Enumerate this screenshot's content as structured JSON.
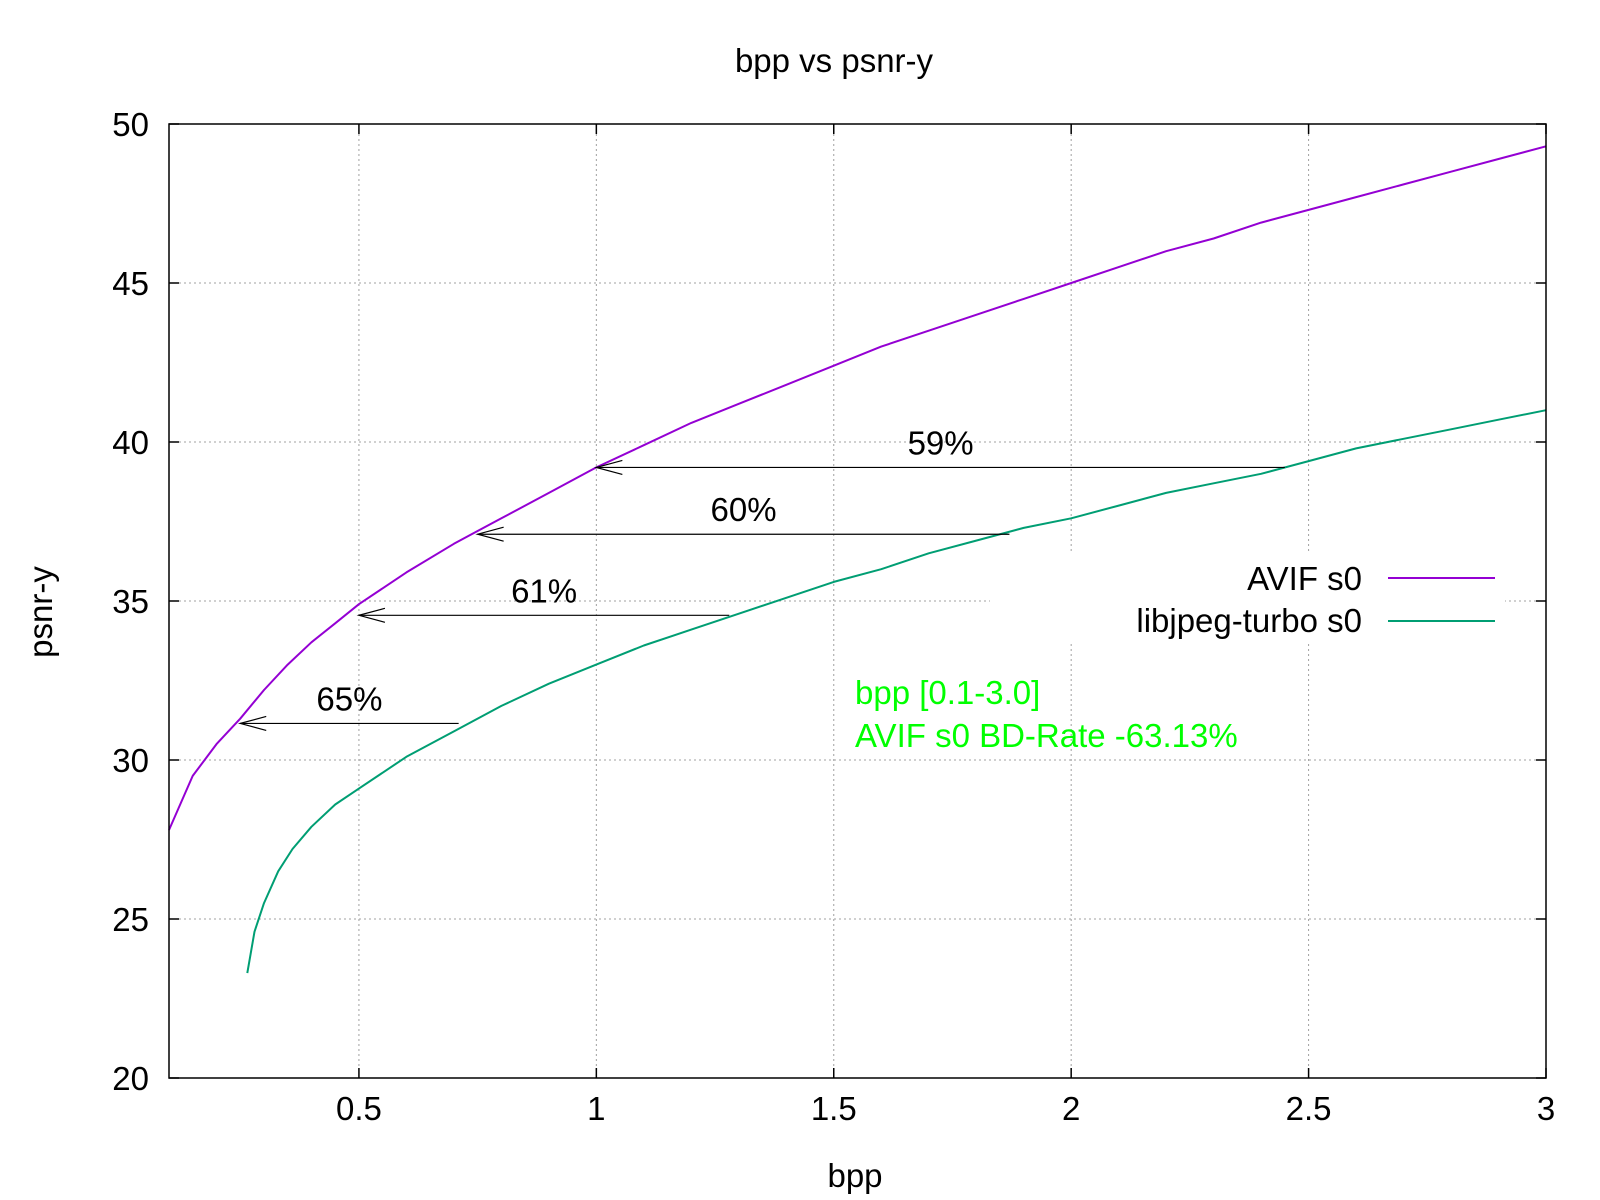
{
  "chart_data": {
    "type": "line",
    "title": "bpp vs psnr-y",
    "xlabel": "bpp",
    "ylabel": "psnr-y",
    "xlim": [
      0.1,
      3.0
    ],
    "ylim": [
      20,
      50
    ],
    "grid": true,
    "x_ticks": [
      0.5,
      1,
      1.5,
      2,
      2.5,
      3
    ],
    "x_tick_labels": [
      "0.5",
      "1",
      "1.5",
      "2",
      "2.5",
      "3"
    ],
    "y_ticks": [
      20,
      25,
      30,
      35,
      40,
      45,
      50
    ],
    "y_tick_labels": [
      "20",
      "25",
      "30",
      "35",
      "40",
      "45",
      "50"
    ],
    "legend_position": "right",
    "series": [
      {
        "name": "AVIF s0",
        "color": "#9400d3",
        "x": [
          0.1,
          0.15,
          0.2,
          0.25,
          0.3,
          0.35,
          0.4,
          0.45,
          0.5,
          0.6,
          0.7,
          0.75,
          0.8,
          0.9,
          1.0,
          1.1,
          1.2,
          1.3,
          1.4,
          1.5,
          1.6,
          1.7,
          1.8,
          1.9,
          2.0,
          2.1,
          2.2,
          2.3,
          2.4,
          2.5,
          2.6,
          2.7,
          2.8,
          2.9,
          3.0
        ],
        "y": [
          27.8,
          29.5,
          30.5,
          31.3,
          32.2,
          33.0,
          33.7,
          34.3,
          34.9,
          35.9,
          36.8,
          37.2,
          37.6,
          38.4,
          39.2,
          39.9,
          40.6,
          41.2,
          41.8,
          42.4,
          43.0,
          43.5,
          44.0,
          44.5,
          45.0,
          45.5,
          46.0,
          46.4,
          46.9,
          47.3,
          47.7,
          48.1,
          48.5,
          48.9,
          49.3
        ]
      },
      {
        "name": "libjpeg-turbo s0",
        "color": "#009e73",
        "x": [
          0.265,
          0.28,
          0.3,
          0.33,
          0.36,
          0.4,
          0.45,
          0.5,
          0.6,
          0.7,
          0.8,
          0.9,
          1.0,
          1.1,
          1.2,
          1.3,
          1.4,
          1.5,
          1.6,
          1.7,
          1.8,
          1.9,
          2.0,
          2.1,
          2.2,
          2.3,
          2.4,
          2.5,
          2.6,
          2.7,
          2.8,
          2.9,
          3.0
        ],
        "y": [
          23.3,
          24.6,
          25.5,
          26.5,
          27.2,
          27.9,
          28.6,
          29.1,
          30.1,
          30.9,
          31.7,
          32.4,
          33.0,
          33.6,
          34.1,
          34.6,
          35.1,
          35.6,
          36.0,
          36.5,
          36.9,
          37.3,
          37.6,
          38.0,
          38.4,
          38.7,
          39.0,
          39.4,
          39.8,
          40.1,
          40.4,
          40.7,
          41.0
        ]
      }
    ],
    "annotations": [
      {
        "label": "59%",
        "x_from": 2.45,
        "x_to": 1.0,
        "y": 39.2
      },
      {
        "label": "60%",
        "x_from": 1.87,
        "x_to": 0.75,
        "y": 37.1
      },
      {
        "label": "61%",
        "x_from": 1.28,
        "x_to": 0.5,
        "y": 34.55
      },
      {
        "label": "65%",
        "x_from": 0.71,
        "x_to": 0.25,
        "y": 31.15
      }
    ],
    "note": {
      "line1": "bpp [0.1-3.0]",
      "line2": "AVIF s0 BD-Rate -63.13%",
      "color": "#00ff00"
    }
  }
}
